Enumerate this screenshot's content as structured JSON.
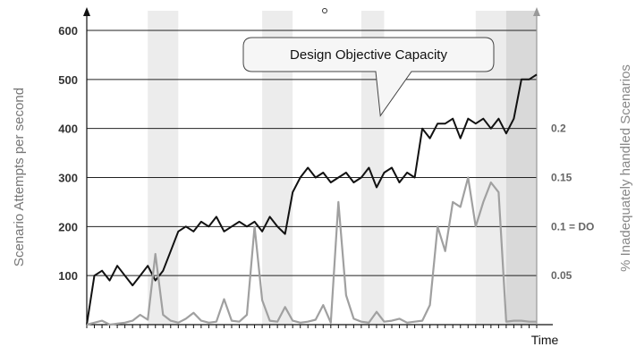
{
  "chart_data": {
    "type": "line",
    "title": "",
    "xlabel": "Time",
    "ylabel_left": "Scenario Attempts per second",
    "ylabel_right": "% Inadequately handled Scenarios",
    "ylim_left": [
      0,
      600
    ],
    "yticks_left": [
      {
        "value": 100,
        "label": "100"
      },
      {
        "value": 200,
        "label": "200"
      },
      {
        "value": 300,
        "label": "300"
      },
      {
        "value": 400,
        "label": "400"
      },
      {
        "value": 500,
        "label": "500"
      },
      {
        "value": 600,
        "label": "600"
      }
    ],
    "ylim_right": [
      0,
      0.3
    ],
    "yticks_right": [
      {
        "value": 0.05,
        "label": "0.05"
      },
      {
        "value": 0.1,
        "label": "0.1 = DO"
      },
      {
        "value": 0.15,
        "label": "0.15"
      },
      {
        "value": 0.2,
        "label": "0.2"
      }
    ],
    "xlim": [
      0,
      59
    ],
    "x_ticks_count": 60,
    "grid": true,
    "shaded_bands": [
      [
        8,
        12
      ],
      [
        23,
        27
      ],
      [
        36,
        39
      ],
      [
        51,
        59
      ]
    ],
    "dark_band": [
      55,
      59
    ],
    "annotation": {
      "text": "Design Objective Capacity",
      "point_x": 38.5,
      "point_y": 415
    },
    "series": [
      {
        "axis": "left",
        "color": "#111111",
        "x": [
          0,
          1,
          2,
          3,
          4,
          5,
          6,
          7,
          8,
          9,
          10,
          11,
          12,
          13,
          14,
          15,
          16,
          17,
          18,
          19,
          20,
          21,
          22,
          23,
          24,
          25,
          26,
          27,
          28,
          29,
          30,
          31,
          32,
          33,
          34,
          35,
          36,
          37,
          38,
          39,
          40,
          41,
          42,
          43,
          44,
          45,
          46,
          47,
          48,
          49,
          50,
          51,
          52,
          53,
          54,
          55,
          56,
          57,
          58,
          59
        ],
        "values": [
          0,
          100,
          110,
          90,
          120,
          100,
          80,
          100,
          120,
          90,
          110,
          150,
          190,
          200,
          190,
          210,
          200,
          220,
          190,
          200,
          210,
          200,
          210,
          190,
          220,
          200,
          185,
          270,
          300,
          320,
          300,
          310,
          290,
          300,
          310,
          290,
          300,
          320,
          280,
          310,
          320,
          290,
          310,
          300,
          400,
          380,
          410,
          410,
          420,
          380,
          420,
          410,
          420,
          400,
          420,
          390,
          420,
          500,
          500,
          510
        ]
      },
      {
        "axis": "right",
        "color": "#a0a0a0",
        "x": [
          0,
          1,
          2,
          3,
          4,
          5,
          6,
          7,
          8,
          9,
          10,
          11,
          12,
          13,
          14,
          15,
          16,
          17,
          18,
          19,
          20,
          21,
          22,
          23,
          24,
          25,
          26,
          27,
          28,
          29,
          30,
          31,
          32,
          33,
          34,
          35,
          36,
          37,
          38,
          39,
          40,
          41,
          42,
          43,
          44,
          45,
          46,
          47,
          48,
          49,
          50,
          51,
          52,
          53,
          54,
          55,
          56,
          57,
          58,
          59
        ],
        "values": [
          0,
          0.002,
          0.004,
          0,
          0.001,
          0.002,
          0.004,
          0.01,
          0.005,
          0.072,
          0.01,
          0.004,
          0.002,
          0.006,
          0.012,
          0.004,
          0.002,
          0.003,
          0.026,
          0.004,
          0.003,
          0.01,
          0.1,
          0.025,
          0.004,
          0.003,
          0.018,
          0.004,
          0.002,
          0.003,
          0.005,
          0.02,
          0.002,
          0.125,
          0.03,
          0.006,
          0.003,
          0.002,
          0.013,
          0.003,
          0.004,
          0.006,
          0.002,
          0.003,
          0.004,
          0.02,
          0.1,
          0.075,
          0.125,
          0.12,
          0.15,
          0.1,
          0.125,
          0.145,
          0.135,
          0.003,
          0.004,
          0.004,
          0.003,
          0.003
        ]
      }
    ]
  }
}
